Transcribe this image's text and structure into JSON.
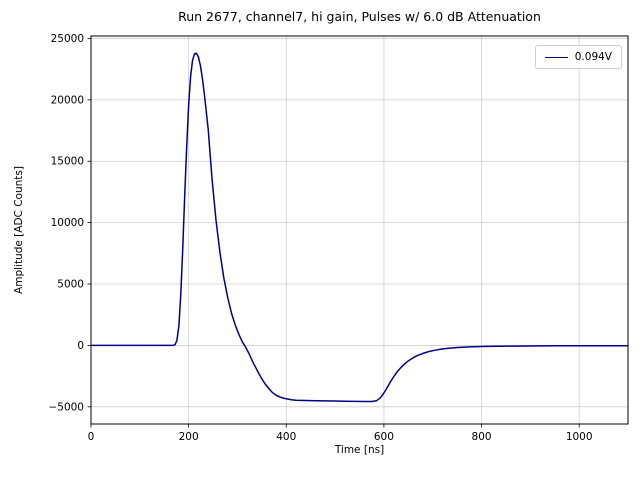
{
  "chart_data": {
    "type": "line",
    "title": "Run 2677, channel7, hi gain, Pulses w/ 6.0 dB Attenuation",
    "xlabel": "Time [ns]",
    "ylabel": "Amplitude [ADC Counts]",
    "xlim": [
      0,
      1100
    ],
    "ylim": [
      -6400,
      25200
    ],
    "xticks": [
      0,
      200,
      400,
      600,
      800,
      1000
    ],
    "yticks": [
      -5000,
      0,
      5000,
      10000,
      15000,
      20000,
      25000
    ],
    "grid": true,
    "legend_position": "upper right",
    "colors": {
      "line": "#00008b",
      "grid": "#b0b0b0",
      "axes": "#000000",
      "legend_border": "#cccccc"
    },
    "series": [
      {
        "name": "0.094V",
        "color": "#00008b",
        "x": [
          0,
          20,
          40,
          60,
          80,
          100,
          120,
          140,
          160,
          168,
          172,
          176,
          180,
          184,
          188,
          192,
          196,
          200,
          204,
          208,
          212,
          216,
          220,
          224,
          228,
          232,
          236,
          240,
          248,
          256,
          264,
          272,
          280,
          288,
          296,
          304,
          310,
          316,
          324,
          332,
          340,
          348,
          356,
          364,
          372,
          380,
          390,
          400,
          410,
          420,
          440,
          460,
          480,
          500,
          520,
          540,
          560,
          575,
          585,
          592,
          598,
          605,
          612,
          620,
          628,
          636,
          644,
          652,
          660,
          670,
          680,
          690,
          700,
          715,
          730,
          750,
          775,
          800,
          830,
          860,
          900,
          950,
          1000,
          1050,
          1100
        ],
        "y": [
          0,
          0,
          0,
          0,
          0,
          0,
          0,
          0,
          0,
          0,
          60,
          400,
          1600,
          4200,
          8000,
          12200,
          16200,
          19500,
          21900,
          23200,
          23750,
          23800,
          23500,
          22800,
          21800,
          20500,
          19100,
          17600,
          13500,
          10200,
          7600,
          5500,
          3900,
          2600,
          1600,
          800,
          300,
          -100,
          -700,
          -1400,
          -2000,
          -2600,
          -3100,
          -3500,
          -3850,
          -4080,
          -4250,
          -4350,
          -4420,
          -4460,
          -4490,
          -4505,
          -4515,
          -4530,
          -4550,
          -4560,
          -4570,
          -4570,
          -4500,
          -4300,
          -4000,
          -3550,
          -3050,
          -2550,
          -2100,
          -1750,
          -1450,
          -1200,
          -1000,
          -800,
          -650,
          -530,
          -430,
          -320,
          -240,
          -170,
          -120,
          -90,
          -70,
          -55,
          -45,
          -35,
          -30,
          -25,
          -20
        ]
      }
    ]
  }
}
